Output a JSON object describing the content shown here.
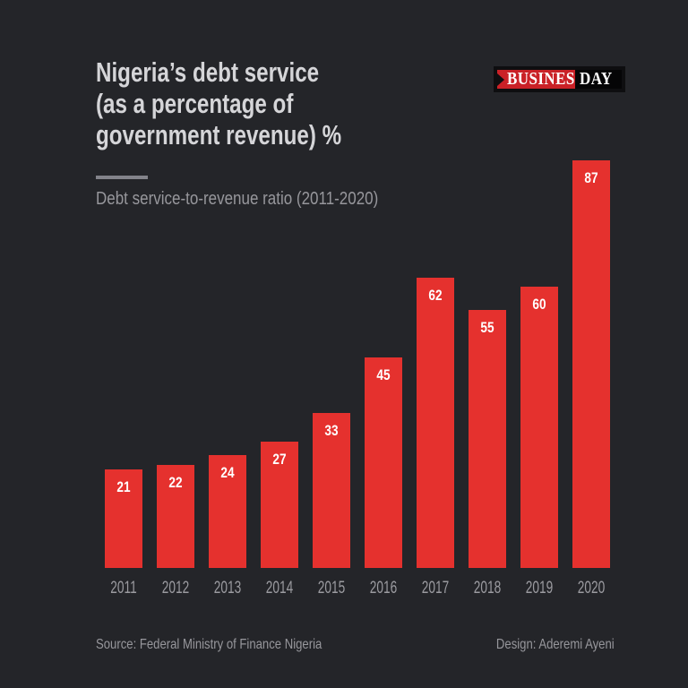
{
  "colors": {
    "background": "#242529",
    "bar_red": "#e5312e",
    "logo_red": "#ca2127",
    "title_text": "#d5d5d8",
    "muted_text": "#97979c"
  },
  "header": {
    "title_lines": [
      "Nigeria’s debt service",
      "(as a percentage of",
      "government revenue) %"
    ],
    "subtitle": "Debt service-to-revenue ratio (2011-2020)"
  },
  "logo": {
    "business": "BUSINESS",
    "day": "DAY"
  },
  "chart_data": {
    "type": "bar",
    "title": "Nigeria’s debt service (as a percentage of government revenue) %",
    "subtitle": "Debt service-to-revenue ratio (2011-2020)",
    "categories": [
      "2011",
      "2012",
      "2013",
      "2014",
      "2015",
      "2016",
      "2017",
      "2018",
      "2019",
      "2020"
    ],
    "values": [
      21,
      22,
      24,
      27,
      33,
      45,
      62,
      55,
      60,
      87
    ],
    "xlabel": "",
    "ylabel": "",
    "ylim": [
      0,
      87
    ],
    "grid": false,
    "legend": false,
    "bar_color": "#e5312e",
    "value_label_position": "inside-top"
  },
  "footer": {
    "source": "Source: Federal Ministry of Finance Nigeria",
    "design": "Design: Aderemi Ayeni"
  }
}
